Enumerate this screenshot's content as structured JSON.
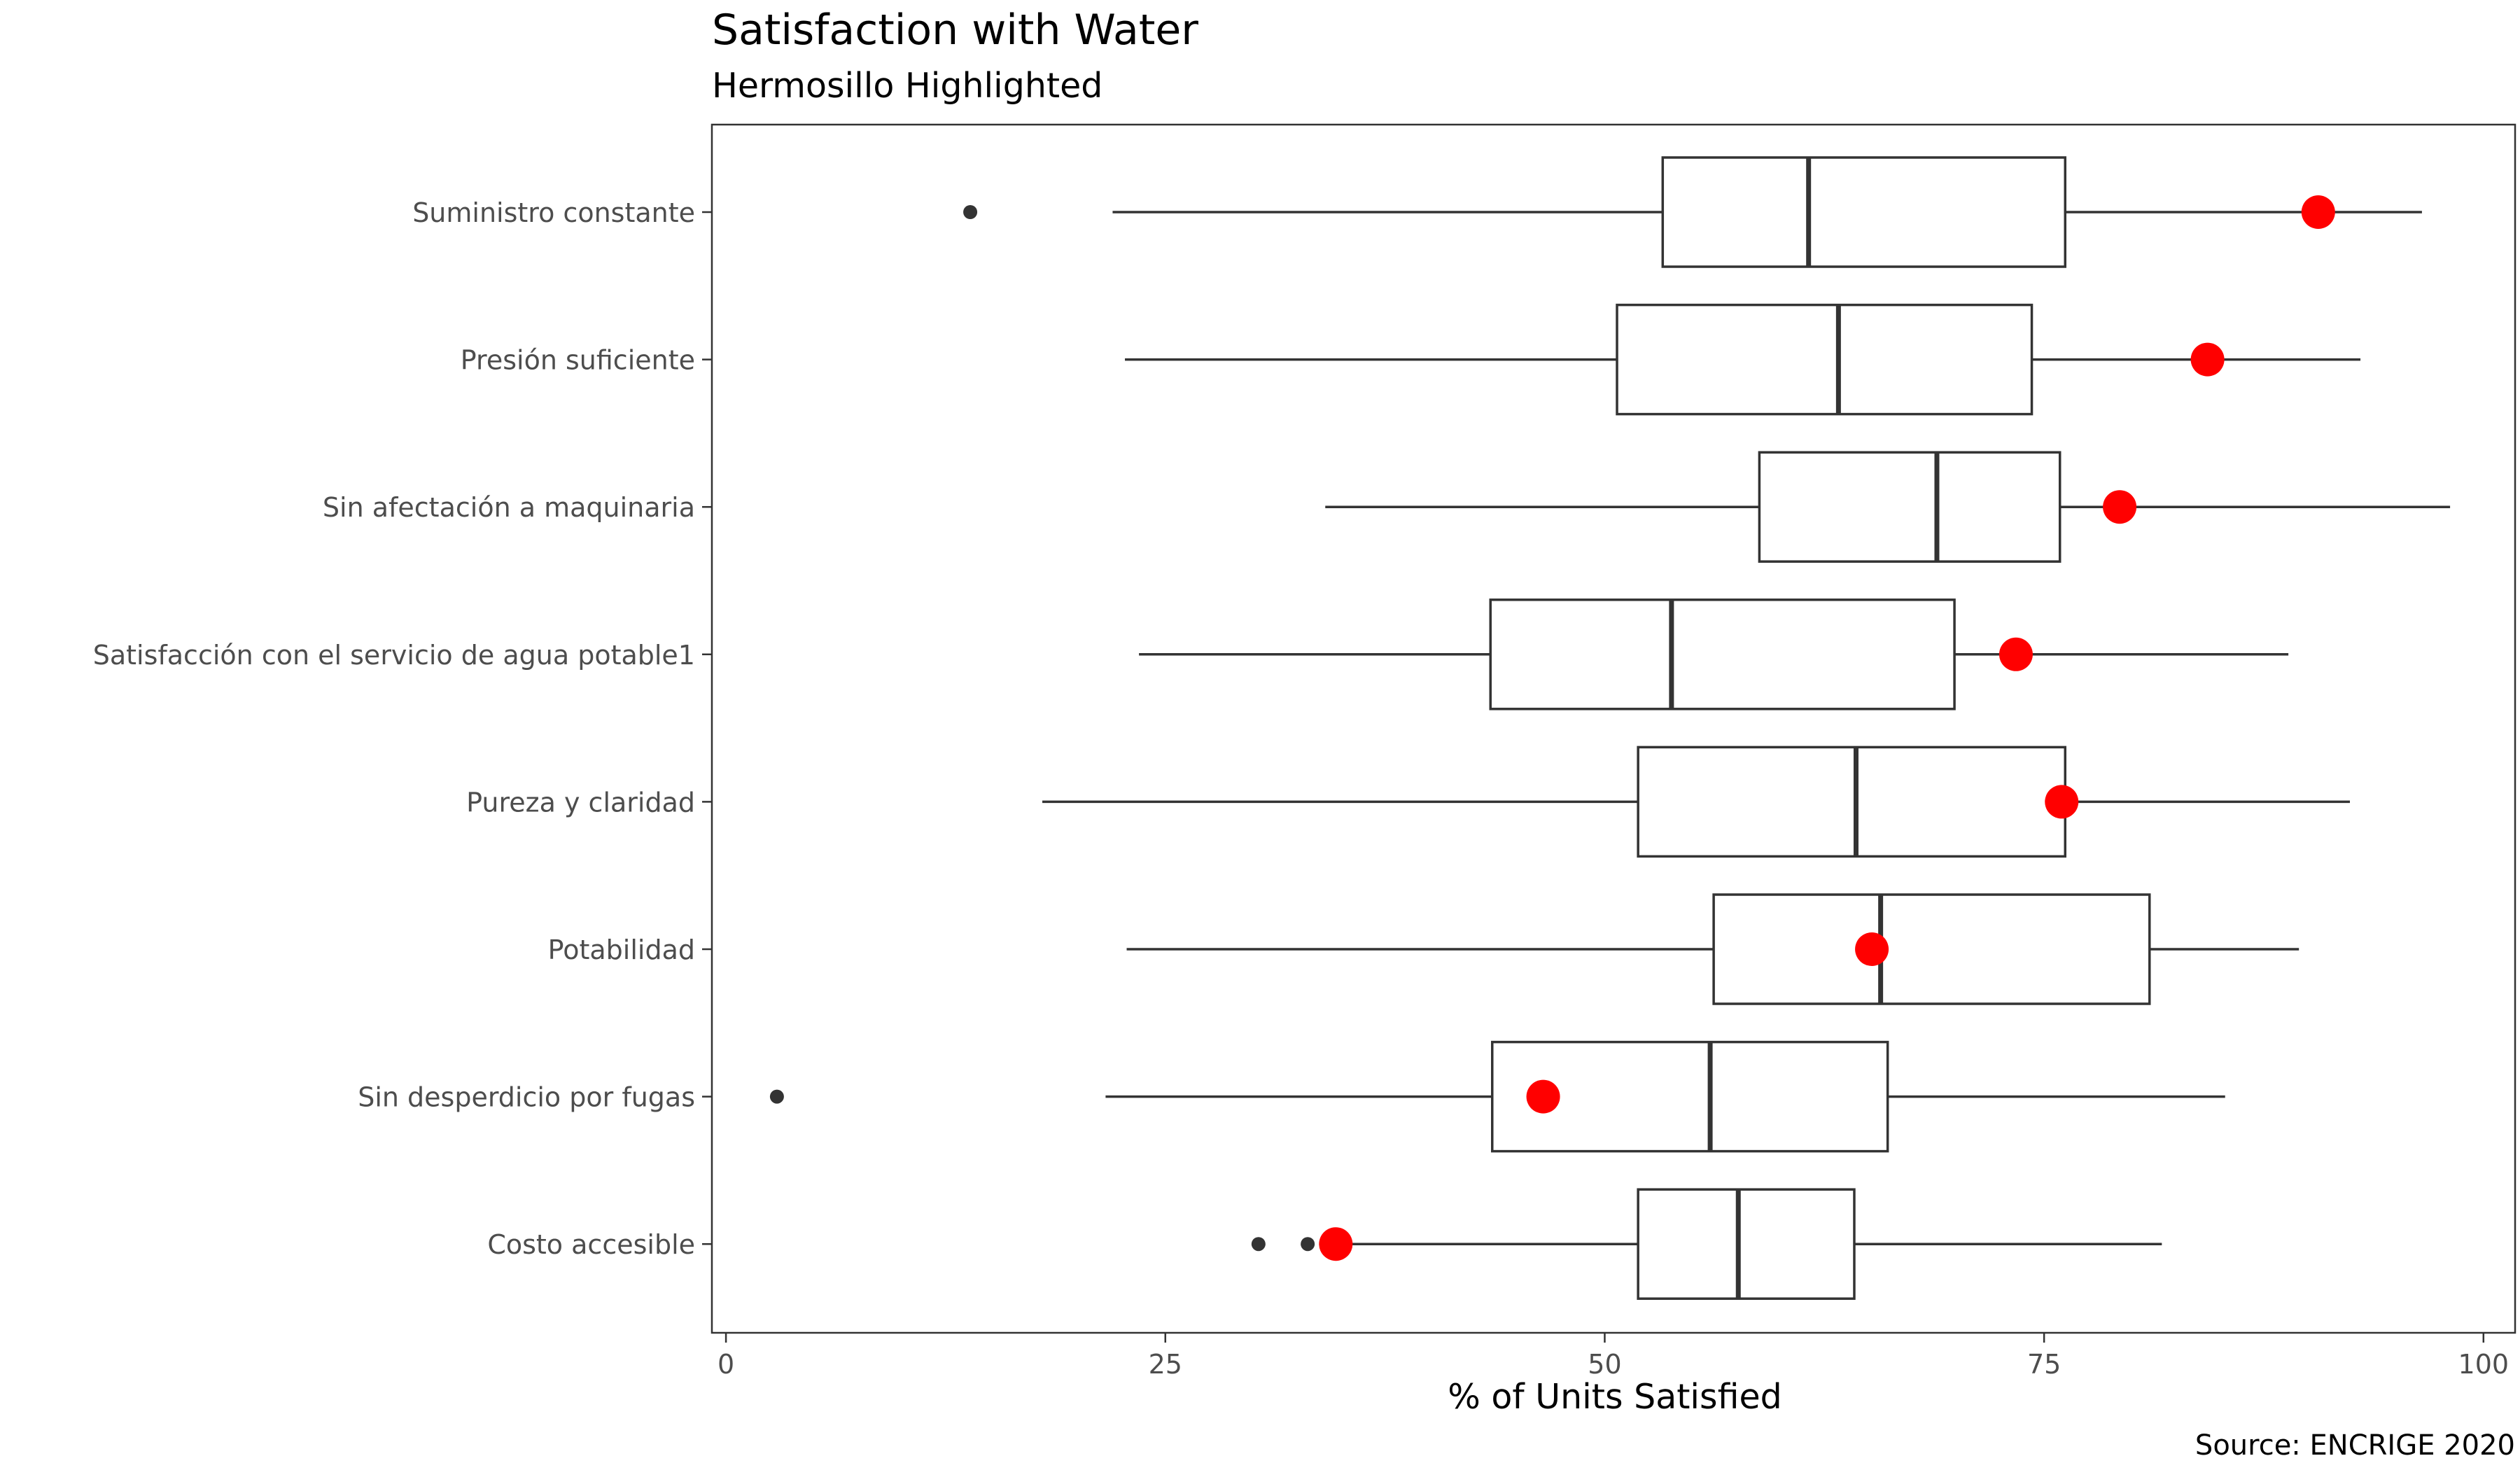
{
  "chart_data": {
    "type": "boxplot",
    "title": "Satisfaction with Water",
    "subtitle": "Hermosillo Highlighted",
    "xlabel": "% of Units Satisfied",
    "caption": "Source: ENCRIGE 2020",
    "xlim": [
      -0.8,
      101.8
    ],
    "xticks": [
      0,
      25,
      50,
      75,
      100
    ],
    "xtick_labels": [
      "0",
      "25",
      "50",
      "75",
      "100"
    ],
    "highlight_color": "#ff0000",
    "categories": [
      "Suministro constante",
      "Presión suficiente",
      "Sin afectación a maquinaria",
      "Satisfacción con el servicio de agua potable1",
      "Pureza y claridad",
      "Potabilidad",
      "Sin desperdicio por fugas",
      "Costo accesible"
    ],
    "boxes": [
      {
        "category": "Suministro constante",
        "whisker_low": 22.0,
        "q1": 53.3,
        "median": 61.6,
        "q3": 76.2,
        "whisker_high": 96.5,
        "outliers": [
          13.9
        ],
        "highlight": 90.6
      },
      {
        "category": "Presión suficiente",
        "whisker_low": 22.7,
        "q1": 50.7,
        "median": 63.3,
        "q3": 74.3,
        "whisker_high": 93.0,
        "outliers": [],
        "highlight": 84.3
      },
      {
        "category": "Sin afectación a maquinaria",
        "whisker_low": 34.1,
        "q1": 58.8,
        "median": 68.9,
        "q3": 75.9,
        "whisker_high": 98.1,
        "outliers": [],
        "highlight": 79.3
      },
      {
        "category": "Satisfacción con el servicio de agua potable1",
        "whisker_low": 23.5,
        "q1": 43.5,
        "median": 53.8,
        "q3": 69.9,
        "whisker_high": 88.9,
        "outliers": [],
        "highlight": 73.4
      },
      {
        "category": "Pureza y claridad",
        "whisker_low": 18.0,
        "q1": 51.9,
        "median": 64.3,
        "q3": 76.2,
        "whisker_high": 92.4,
        "outliers": [],
        "highlight": 76.0
      },
      {
        "category": "Potabilidad",
        "whisker_low": 22.8,
        "q1": 56.2,
        "median": 65.7,
        "q3": 81.0,
        "whisker_high": 89.5,
        "outliers": [],
        "highlight": 65.2
      },
      {
        "category": "Sin desperdicio por fugas",
        "whisker_low": 21.6,
        "q1": 43.6,
        "median": 56.0,
        "q3": 66.1,
        "whisker_high": 85.3,
        "outliers": [
          2.9
        ],
        "highlight": 46.5
      },
      {
        "category": "Costo accesible",
        "whisker_low": 34.7,
        "q1": 51.9,
        "median": 57.6,
        "q3": 64.2,
        "whisker_high": 81.7,
        "outliers": [
          30.3,
          33.1
        ],
        "highlight": 34.7
      }
    ]
  }
}
